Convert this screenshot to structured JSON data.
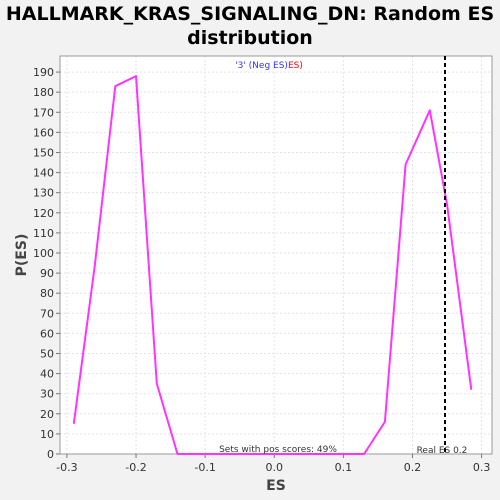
{
  "chart_data": {
    "type": "line",
    "title_line1": "HALLMARK_KRAS_SIGNALING_DN: Random ES",
    "title_line2": "distribution",
    "xlabel": "ES",
    "ylabel": "P(ES)",
    "xlim": [
      -0.31,
      0.315
    ],
    "ylim": [
      0,
      198
    ],
    "x_ticks": [
      -0.3,
      -0.2,
      -0.1,
      0.0,
      0.1,
      0.2,
      0.3
    ],
    "x_tick_labels": [
      "-0.3",
      "-0.2",
      "-0.1",
      "0.0",
      "0.1",
      "0.2",
      "0.3"
    ],
    "y_ticks": [
      0,
      10,
      20,
      30,
      40,
      50,
      60,
      70,
      80,
      90,
      100,
      110,
      120,
      130,
      140,
      150,
      160,
      170,
      180,
      190
    ],
    "grid": true,
    "series": [
      {
        "color": "#ff33ff",
        "x": [
          -0.29,
          -0.26,
          -0.23,
          -0.2,
          -0.17,
          -0.14,
          -0.11,
          -0.08,
          -0.05,
          -0.02,
          0.01,
          0.04,
          0.07,
          0.1,
          0.13,
          0.16,
          0.19,
          0.225,
          0.25,
          0.285
        ],
        "y": [
          15,
          93,
          183,
          188,
          35,
          0,
          0,
          0,
          0,
          0,
          0,
          0,
          0,
          0,
          0,
          16,
          144,
          171,
          124,
          32
        ]
      }
    ],
    "real_es": 0.247,
    "legend": {
      "quote_open": "'3' (",
      "neg_es": "Neg ES",
      "close": ")",
      "es": "ES)",
      "quote_color": "#3333ff",
      "neg_color": "#3333ff",
      "es_color": "#ff0000"
    },
    "annotation_pos": "Sets with pos scores: 49%",
    "annotation_real": "Real ES 0.2"
  }
}
